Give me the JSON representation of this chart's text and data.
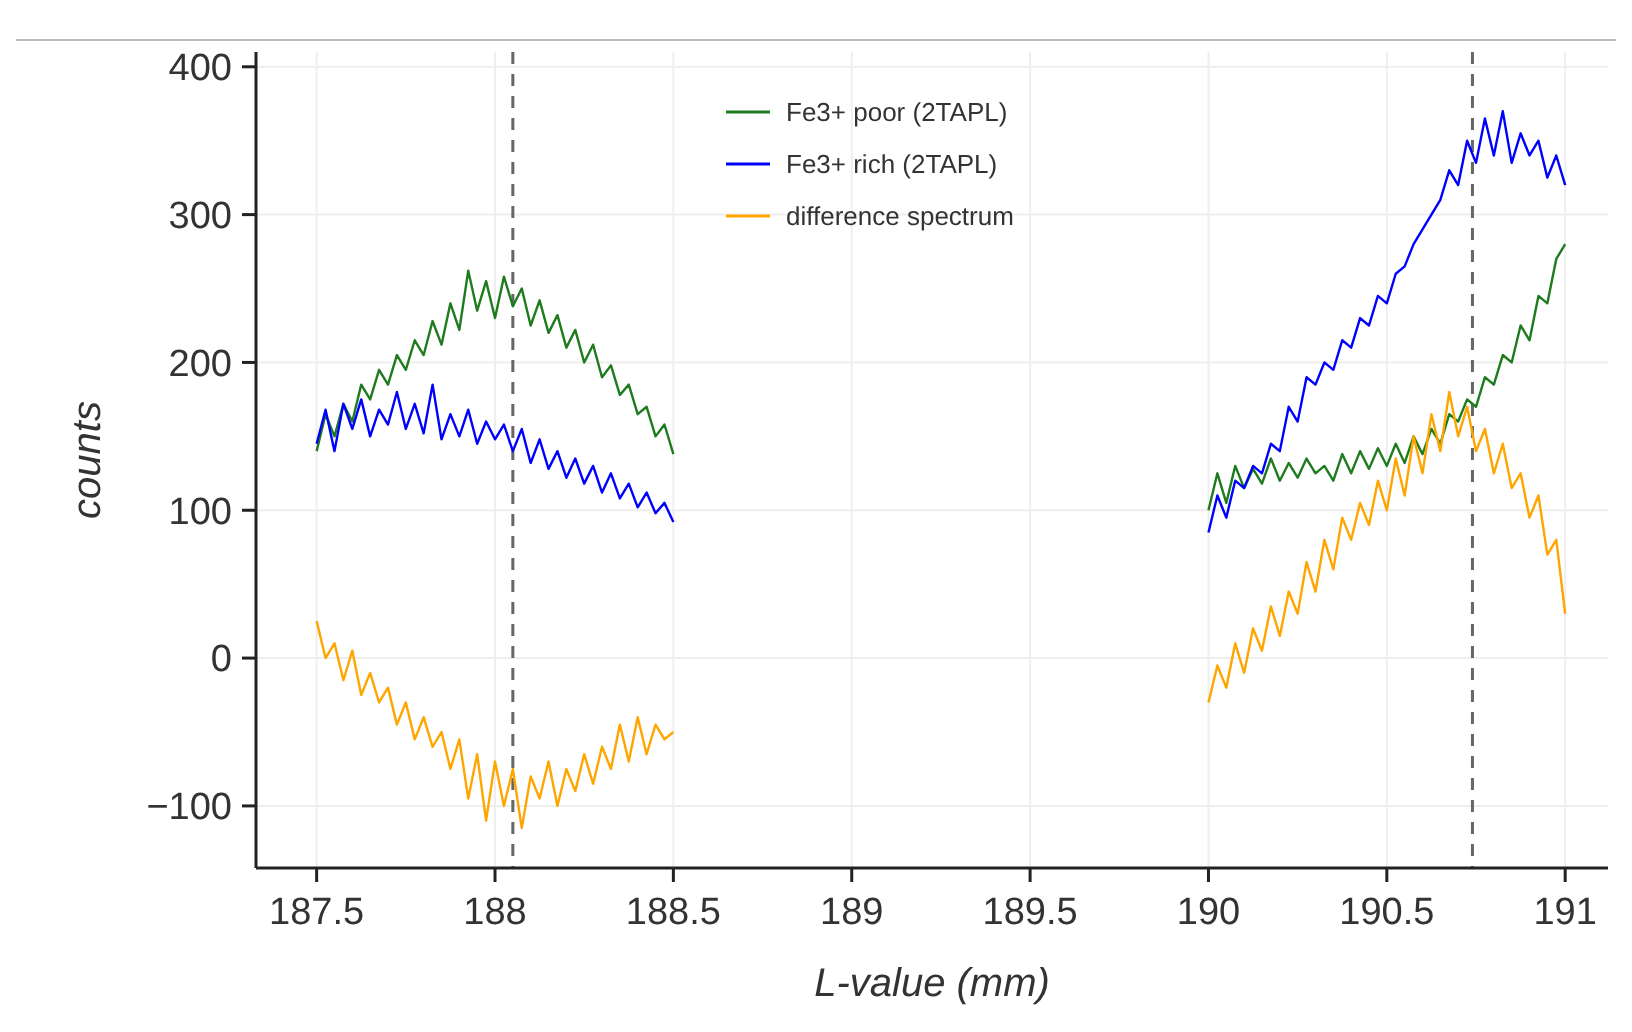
{
  "chart_data": {
    "type": "line",
    "xlabel": "L-value (mm)",
    "ylabel": "counts",
    "x": [
      187.5,
      187.525,
      187.55,
      187.575,
      187.6,
      187.625,
      187.65,
      187.675,
      187.7,
      187.725,
      187.75,
      187.775,
      187.8,
      187.825,
      187.85,
      187.875,
      187.9,
      187.925,
      187.95,
      187.975,
      188,
      188.025,
      188.05,
      188.075,
      188.1,
      188.125,
      188.15,
      188.175,
      188.2,
      188.225,
      188.25,
      188.275,
      188.3,
      188.325,
      188.35,
      188.375,
      188.4,
      188.425,
      188.45,
      188.475,
      188.5,
      190,
      190.025,
      190.05,
      190.075,
      190.1,
      190.125,
      190.15,
      190.175,
      190.2,
      190.225,
      190.25,
      190.275,
      190.3,
      190.325,
      190.35,
      190.375,
      190.4,
      190.425,
      190.45,
      190.475,
      190.5,
      190.525,
      190.55,
      190.575,
      190.6,
      190.625,
      190.65,
      190.675,
      190.7,
      190.725,
      190.75,
      190.775,
      190.8,
      190.825,
      190.85,
      190.875,
      190.9,
      190.925,
      190.95,
      190.975,
      191
    ],
    "series": [
      {
        "name": "Fe3+ poor (2TAPL)",
        "color": "#1e7b1e",
        "values": [
          140,
          165,
          150,
          172,
          160,
          185,
          175,
          195,
          185,
          205,
          195,
          215,
          205,
          228,
          212,
          240,
          222,
          262,
          235,
          255,
          230,
          258,
          238,
          250,
          225,
          242,
          220,
          232,
          210,
          222,
          200,
          212,
          190,
          198,
          178,
          185,
          165,
          170,
          150,
          158,
          138,
          100,
          125,
          105,
          130,
          115,
          128,
          118,
          135,
          120,
          132,
          122,
          135,
          125,
          130,
          120,
          138,
          125,
          140,
          128,
          142,
          130,
          145,
          132,
          150,
          138,
          155,
          145,
          165,
          160,
          175,
          170,
          190,
          185,
          205,
          200,
          225,
          215,
          245,
          240,
          270,
          280
        ]
      },
      {
        "name": "Fe3+ rich (2TAPL)",
        "color": "#0000ff",
        "values": [
          145,
          168,
          140,
          172,
          155,
          175,
          150,
          168,
          158,
          180,
          155,
          172,
          152,
          185,
          148,
          165,
          150,
          168,
          145,
          160,
          148,
          158,
          140,
          155,
          132,
          148,
          128,
          140,
          122,
          135,
          118,
          130,
          112,
          125,
          108,
          118,
          102,
          112,
          98,
          105,
          92,
          85,
          110,
          95,
          120,
          115,
          130,
          125,
          145,
          140,
          170,
          160,
          190,
          185,
          200,
          195,
          215,
          210,
          230,
          225,
          245,
          240,
          260,
          265,
          280,
          290,
          300,
          310,
          330,
          320,
          350,
          335,
          365,
          340,
          370,
          335,
          355,
          340,
          350,
          325,
          340,
          320
        ]
      },
      {
        "name": "difference spectrum",
        "color": "#ffa500",
        "values": [
          25,
          0,
          10,
          -15,
          5,
          -25,
          -10,
          -30,
          -20,
          -45,
          -30,
          -55,
          -40,
          -60,
          -50,
          -75,
          -55,
          -95,
          -65,
          -110,
          -70,
          -100,
          -75,
          -115,
          -80,
          -95,
          -70,
          -100,
          -75,
          -90,
          -65,
          -85,
          -60,
          -75,
          -45,
          -70,
          -40,
          -65,
          -45,
          -55,
          -50,
          -30,
          -5,
          -20,
          10,
          -10,
          20,
          5,
          35,
          15,
          45,
          30,
          65,
          45,
          80,
          60,
          95,
          80,
          105,
          90,
          120,
          100,
          135,
          110,
          150,
          125,
          165,
          140,
          180,
          150,
          170,
          140,
          155,
          125,
          145,
          115,
          125,
          95,
          110,
          70,
          80,
          30
        ]
      }
    ],
    "xlim": [
      187.33,
      191.12
    ],
    "xticks": [
      187.5,
      188,
      188.5,
      189,
      189.5,
      190,
      190.5,
      191
    ],
    "ylim": [
      -142,
      410
    ],
    "yticks": [
      -100,
      0,
      100,
      200,
      300,
      400
    ],
    "ref_lines": [
      {
        "axis": "x",
        "value": 188.05,
        "color": "#666666",
        "line_style": "dashed"
      },
      {
        "axis": "x",
        "value": 190.74,
        "color": "#666666",
        "line_style": "dashed"
      }
    ],
    "grid": true,
    "legend": "top",
    "marker": "none",
    "line_style": "solid"
  }
}
